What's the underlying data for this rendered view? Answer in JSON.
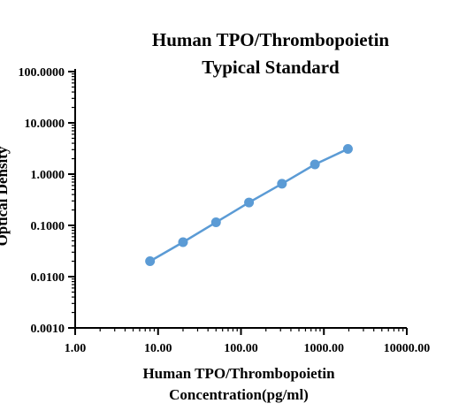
{
  "chart_data": {
    "type": "line",
    "title": [
      "Human TPO/Thrombopoietin",
      "Typical Standard"
    ],
    "xlabel": [
      "Human TPO/Thrombopoietin",
      "Concentration(pg/ml)"
    ],
    "ylabel": "Optical Density",
    "x_scale": "log",
    "y_scale": "log",
    "xlim": [
      1,
      10000
    ],
    "ylim": [
      0.001,
      100
    ],
    "x_ticks": [
      1,
      10,
      100,
      1000,
      10000
    ],
    "x_tick_labels": [
      "1.00",
      "10.00",
      "100.00",
      "1000.00",
      "10000.00"
    ],
    "y_ticks": [
      0.001,
      0.01,
      0.1,
      1,
      10,
      100
    ],
    "y_tick_labels": [
      "0.0010",
      "0.0100",
      "0.1000",
      "1.0000",
      "10.0000",
      "100.0000"
    ],
    "grid": false,
    "legend": "none",
    "series_color": "#5b9bd5",
    "series": [
      {
        "x": [
          8,
          20,
          50,
          125,
          312,
          780,
          1950
        ],
        "y": [
          0.02,
          0.047,
          0.115,
          0.28,
          0.65,
          1.55,
          3.1
        ]
      }
    ]
  }
}
